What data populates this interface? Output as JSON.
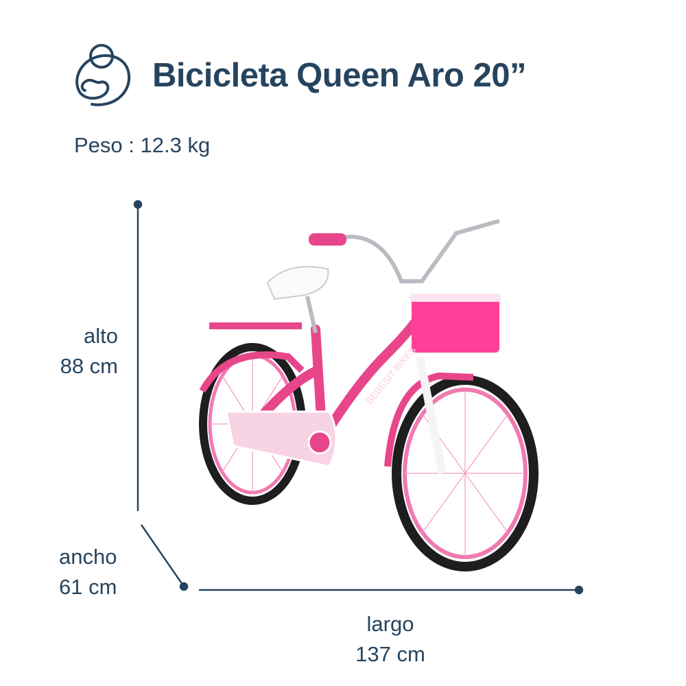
{
  "header": {
    "title": "Bicicleta Queen Aro 20”",
    "logo": "mother-baby-logo-icon"
  },
  "weight": {
    "label": "Peso",
    "separator": " : ",
    "value": "12.3 kg"
  },
  "dimensions": {
    "alto": {
      "label": "alto",
      "value": "88 cm"
    },
    "ancho": {
      "label": "ancho",
      "value": "61 cm"
    },
    "largo": {
      "label": "largo",
      "value": "137 cm"
    }
  },
  "product_image": {
    "brand_text": "BEBESIT BIKES",
    "frame_color": "#e8468a",
    "tire_color": "#1e1e1e"
  },
  "colors": {
    "text": "#26445f"
  }
}
